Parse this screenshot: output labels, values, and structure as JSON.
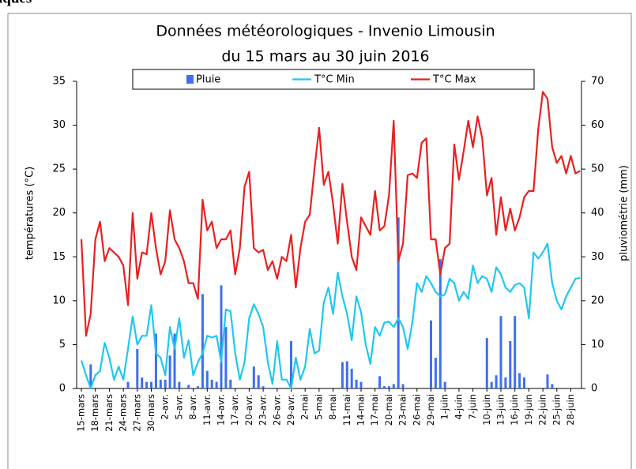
{
  "page_title": "iques",
  "chart_data": {
    "type": "combo",
    "title": "Données météorologiques - Invenio Limousin",
    "subtitle": "du 15 mars au 30 juin 2016",
    "ylabel": "températures (°C)",
    "y2label": "pluviométrie (mm)",
    "ylim": [
      0,
      35
    ],
    "yticks": [
      0,
      5,
      10,
      15,
      20,
      25,
      30,
      35
    ],
    "y2lim": [
      0,
      70
    ],
    "y2ticks": [
      0,
      10,
      20,
      30,
      40,
      50,
      60,
      70
    ],
    "categories": [
      "15-mars",
      null,
      null,
      "18-mars",
      null,
      null,
      "21-mars",
      null,
      null,
      "24-mars",
      null,
      null,
      "27-mars",
      null,
      null,
      "30-mars",
      null,
      null,
      "2-avr.",
      null,
      null,
      "5-avr.",
      null,
      null,
      "8-avr.",
      null,
      null,
      "11-avr.",
      null,
      null,
      "14-avr.",
      null,
      null,
      "17-avr.",
      null,
      null,
      "20-avr.",
      null,
      null,
      "23-avr.",
      null,
      null,
      "26-avr.",
      null,
      null,
      "29-avr.",
      null,
      null,
      "2-mai",
      null,
      null,
      "5-mai",
      null,
      null,
      "8-mai",
      null,
      null,
      "11-mai",
      null,
      null,
      "14-mai",
      null,
      null,
      "17-mai",
      null,
      null,
      "20-mai",
      null,
      null,
      "23-mai",
      null,
      null,
      "26-mai",
      null,
      null,
      "29-mai",
      null,
      null,
      "1-juin",
      null,
      null,
      "4-juin",
      null,
      null,
      "7-juin",
      null,
      null,
      "10-juin",
      null,
      null,
      "13-juin",
      null,
      null,
      "16-juin",
      null,
      null,
      "19-juin",
      null,
      null,
      "22-juin",
      null,
      null,
      "25-juin",
      null,
      null,
      "28-juin",
      null,
      null
    ],
    "series": [
      {
        "name": "Pluie",
        "type": "bar",
        "axis": "y2",
        "color": "#3d6ff0",
        "values": [
          0,
          0,
          5.5,
          0,
          0,
          0,
          0,
          0,
          0,
          0,
          1.5,
          0,
          9,
          2.5,
          1.5,
          1.5,
          12.5,
          2,
          2,
          7.5,
          12.5,
          1.5,
          0,
          0.8,
          0,
          0.5,
          21.5,
          4,
          2,
          1.5,
          23.5,
          14,
          2,
          0,
          0,
          0,
          0,
          5,
          3,
          0.5,
          0,
          0,
          0,
          0,
          0,
          10.8,
          0,
          0,
          0,
          0,
          0,
          0,
          0,
          0,
          0,
          0,
          6,
          6.2,
          4.5,
          2,
          1.5,
          0,
          0,
          0,
          2.8,
          0.5,
          0.5,
          1,
          39,
          1,
          0,
          0,
          0,
          0,
          0,
          15.5,
          7,
          29.5,
          1.5,
          0,
          0,
          0,
          0,
          0,
          0,
          0,
          0,
          11.5,
          1.5,
          3,
          16.5,
          2.5,
          10.8,
          16.5,
          3.5,
          2.5,
          0,
          0,
          0,
          0,
          3.2,
          1,
          0,
          0,
          0,
          0,
          0,
          0
        ]
      },
      {
        "name": "T°C Min",
        "type": "line",
        "color": "#1ec8f0",
        "values": [
          3.2,
          1.5,
          0,
          1.5,
          2,
          5.2,
          3.5,
          1,
          2.5,
          1,
          4.5,
          8.2,
          5,
          6,
          6,
          9.5,
          4,
          3.5,
          1.5,
          7,
          4.5,
          8,
          3.5,
          5.5,
          1.5,
          3,
          4,
          6,
          5.8,
          6,
          3,
          9,
          8.8,
          4,
          1,
          3,
          8,
          9.6,
          8.5,
          7,
          3,
          0.5,
          5.4,
          1,
          1,
          0,
          3.5,
          1,
          2.5,
          6.8,
          4,
          4.3,
          9.8,
          11.5,
          8.5,
          13.2,
          10.5,
          8.5,
          5.5,
          10.5,
          8.7,
          5,
          2.8,
          7,
          6,
          7.5,
          7.6,
          7,
          8,
          7,
          4.5,
          7.5,
          12,
          11,
          12.8,
          12,
          11,
          10.5,
          10.7,
          12.5,
          12,
          10,
          11,
          10.2,
          14,
          12,
          12.8,
          12.5,
          11,
          13.8,
          13,
          11.5,
          11,
          11.8,
          12,
          11.5,
          8,
          15.5,
          14.8,
          15.5,
          16.5,
          12,
          10,
          9,
          10.5,
          11.5,
          12.5,
          12.6
        ]
      },
      {
        "name": "T°C Max",
        "type": "line",
        "color": "#e8201e",
        "values": [
          17,
          6,
          8.5,
          17,
          19,
          14.5,
          16,
          15.5,
          15,
          14,
          9.5,
          20,
          12.5,
          15.5,
          15.3,
          20,
          16,
          13,
          14.5,
          20.3,
          17,
          16,
          14.5,
          12,
          12,
          10.2,
          21.5,
          18,
          19,
          16,
          17,
          17,
          18,
          13,
          16,
          23,
          24.7,
          16,
          15.5,
          15.8,
          13.5,
          14.5,
          12.5,
          15,
          14.5,
          17.5,
          11.5,
          16,
          19,
          19.8,
          25,
          29.7,
          23.2,
          24.7,
          21,
          16.5,
          23.3,
          19,
          15,
          13.5,
          19.5,
          18.5,
          17.5,
          22.5,
          18,
          18.5,
          22,
          30.5,
          14.5,
          16.5,
          24.3,
          24.5,
          24,
          28,
          28.5,
          17,
          17,
          13,
          16,
          16.5,
          27.8,
          23.8,
          27,
          30.5,
          27.5,
          31,
          28.5,
          22,
          24,
          17.5,
          21.8,
          18,
          20.5,
          18,
          19.5,
          21.8,
          22.5,
          22.5,
          29.5,
          33.8,
          33,
          27.5,
          25.7,
          26.5,
          24.5,
          26.5,
          24.5,
          24.8
        ]
      }
    ]
  }
}
